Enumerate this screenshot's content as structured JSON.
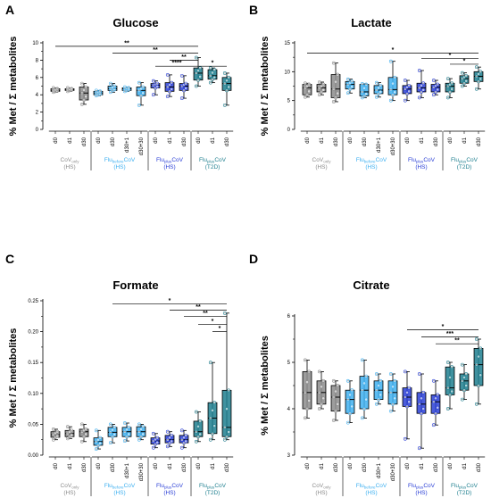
{
  "panels": [
    {
      "letter": "A"
    },
    {
      "letter": "B"
    },
    {
      "letter": "C"
    },
    {
      "letter": "D"
    }
  ],
  "colors": {
    "CoV_only": "#8c8c8c",
    "Flu_before_CoV": "#3fb0f0",
    "Flu_plus_CoV_HS": "#2a3fd6",
    "Flu_plus_CoV_T2D": "#1f7f8f"
  },
  "chart_data": [
    {
      "type": "box",
      "title": "Glucose",
      "ylabel": "% Met / Σ metabolites",
      "ylim": [
        0,
        10
      ],
      "yticks": [
        "0",
        "2",
        "4",
        "6",
        "8",
        "10"
      ],
      "groups": [
        {
          "base": "CoV",
          "sub": "only",
          "tail": "",
          "cohort": "(HS)",
          "categories": [
            "d0",
            "d1",
            "d30"
          ]
        },
        {
          "base": "Flu",
          "sub": "before",
          "tail": "CoV",
          "cohort": "(HS)",
          "categories": [
            "d0",
            "d30",
            "d30+1",
            "d30+30"
          ]
        },
        {
          "base": "Flu",
          "sub": "plus",
          "tail": "CoV",
          "cohort": "(HS)",
          "categories": [
            "d0",
            "d1",
            "d30"
          ]
        },
        {
          "base": "Flu",
          "sub": "plus",
          "tail": "CoV",
          "cohort": "(T2D)",
          "categories": [
            "d0",
            "d1",
            "d30"
          ]
        }
      ],
      "boxes": [
        {
          "min": 4.3,
          "q1": 4.4,
          "median": 4.5,
          "q3": 4.7,
          "max": 4.8
        },
        {
          "min": 4.4,
          "q1": 4.5,
          "median": 4.6,
          "q3": 4.7,
          "max": 4.8
        },
        {
          "min": 2.9,
          "q1": 3.4,
          "median": 4.2,
          "q3": 4.9,
          "max": 5.3
        },
        {
          "min": 3.9,
          "q1": 4.0,
          "median": 4.2,
          "q3": 4.4,
          "max": 4.5
        },
        {
          "min": 4.3,
          "q1": 4.5,
          "median": 4.7,
          "q3": 5.0,
          "max": 5.3
        },
        {
          "min": 4.4,
          "q1": 4.5,
          "median": 4.7,
          "q3": 4.8,
          "max": 4.9
        },
        {
          "min": 2.8,
          "q1": 3.9,
          "median": 4.5,
          "q3": 4.9,
          "max": 5.4
        },
        {
          "min": 4.0,
          "q1": 4.8,
          "median": 5.1,
          "q3": 5.3,
          "max": 5.6
        },
        {
          "min": 3.8,
          "q1": 4.4,
          "median": 4.9,
          "q3": 5.4,
          "max": 6.3
        },
        {
          "min": 3.6,
          "q1": 4.5,
          "median": 5.0,
          "q3": 5.3,
          "max": 6.2
        },
        {
          "min": 5.0,
          "q1": 5.7,
          "median": 6.5,
          "q3": 7.1,
          "max": 8.3
        },
        {
          "min": 5.4,
          "q1": 5.8,
          "median": 6.2,
          "q3": 6.9,
          "max": 7.1
        },
        {
          "min": 2.8,
          "q1": 4.5,
          "median": 5.3,
          "q3": 6.0,
          "max": 6.5
        }
      ],
      "significance": [
        {
          "label": "**",
          "from": 0,
          "to": 10,
          "y": 9.6
        },
        {
          "label": "**",
          "from": 4,
          "to": 10,
          "y": 8.8
        },
        {
          "label": "**",
          "from": 8,
          "to": 10,
          "y": 8.0
        },
        {
          "label": "****",
          "from": 7,
          "to": 10,
          "y": 7.3
        },
        {
          "label": "*",
          "from": 10,
          "to": 12,
          "y": 7.3
        }
      ]
    },
    {
      "type": "box",
      "title": "Lactate",
      "ylabel": "% Met / Σ metabolites",
      "ylim": [
        0,
        15
      ],
      "yticks": [
        "0",
        "5",
        "10",
        "15"
      ],
      "groups": [
        {
          "base": "CoV",
          "sub": "only",
          "tail": "",
          "cohort": "(HS)",
          "categories": [
            "d0",
            "d1",
            "d30"
          ]
        },
        {
          "base": "Flu",
          "sub": "before",
          "tail": "CoV",
          "cohort": "(HS)",
          "categories": [
            "d0",
            "d30",
            "d30+1",
            "d30+30"
          ]
        },
        {
          "base": "Flu",
          "sub": "plus",
          "tail": "CoV",
          "cohort": "(HS)",
          "categories": [
            "d0",
            "d1",
            "d30"
          ]
        },
        {
          "base": "Flu",
          "sub": "plus",
          "tail": "CoV",
          "cohort": "(T2D)",
          "categories": [
            "d0",
            "d1",
            "d30"
          ]
        }
      ],
      "boxes": [
        {
          "min": 5.6,
          "q1": 6.0,
          "median": 7.2,
          "q3": 7.8,
          "max": 8.0
        },
        {
          "min": 6.0,
          "q1": 6.5,
          "median": 7.2,
          "q3": 7.8,
          "max": 8.2
        },
        {
          "min": 4.8,
          "q1": 5.5,
          "median": 7.0,
          "q3": 9.5,
          "max": 11.5
        },
        {
          "min": 6.3,
          "q1": 7.0,
          "median": 7.8,
          "q3": 8.3,
          "max": 8.7
        },
        {
          "min": 5.5,
          "q1": 5.8,
          "median": 6.5,
          "q3": 7.8,
          "max": 7.9
        },
        {
          "min": 5.6,
          "q1": 6.2,
          "median": 6.8,
          "q3": 7.6,
          "max": 8.1
        },
        {
          "min": 5.0,
          "q1": 6.0,
          "median": 6.9,
          "q3": 9.0,
          "max": 11.8
        },
        {
          "min": 5.0,
          "q1": 6.2,
          "median": 7.0,
          "q3": 7.6,
          "max": 8.5
        },
        {
          "min": 5.5,
          "q1": 6.5,
          "median": 7.2,
          "q3": 8.0,
          "max": 10.2
        },
        {
          "min": 6.0,
          "q1": 6.5,
          "median": 7.3,
          "q3": 7.8,
          "max": 8.5
        },
        {
          "min": 5.5,
          "q1": 6.5,
          "median": 7.5,
          "q3": 8.0,
          "max": 8.8
        },
        {
          "min": 7.5,
          "q1": 8.0,
          "median": 8.8,
          "q3": 9.3,
          "max": 9.8
        },
        {
          "min": 7.0,
          "q1": 8.3,
          "median": 9.2,
          "q3": 10.0,
          "max": 10.8
        }
      ],
      "significance": [
        {
          "label": "*",
          "from": 0,
          "to": 12,
          "y": 13.2
        },
        {
          "label": "*",
          "from": 8,
          "to": 12,
          "y": 12.3
        },
        {
          "label": "*",
          "from": 10,
          "to": 12,
          "y": 11.3
        }
      ]
    },
    {
      "type": "box",
      "title": "Formate",
      "ylabel": "% Met / Σ metabolites",
      "ylim": [
        0,
        0.25
      ],
      "yticks": [
        "0.00",
        "0.05",
        "0.10",
        "0.15",
        "0.20",
        "0.25"
      ],
      "groups": [
        {
          "base": "CoV",
          "sub": "only",
          "tail": "",
          "cohort": "(HS)",
          "categories": [
            "d0",
            "d1",
            "d30"
          ]
        },
        {
          "base": "Flu",
          "sub": "before",
          "tail": "CoV",
          "cohort": "(HS)",
          "categories": [
            "d0",
            "d30",
            "d30+1",
            "d30+30"
          ]
        },
        {
          "base": "Flu",
          "sub": "plus",
          "tail": "CoV",
          "cohort": "(HS)",
          "categories": [
            "d0",
            "d1",
            "d30"
          ]
        },
        {
          "base": "Flu",
          "sub": "plus",
          "tail": "CoV",
          "cohort": "(T2D)",
          "categories": [
            "d0",
            "d1",
            "d30"
          ]
        }
      ],
      "boxes": [
        {
          "min": 0.025,
          "q1": 0.029,
          "median": 0.033,
          "q3": 0.038,
          "max": 0.042
        },
        {
          "min": 0.027,
          "q1": 0.03,
          "median": 0.035,
          "q3": 0.04,
          "max": 0.046
        },
        {
          "min": 0.022,
          "q1": 0.03,
          "median": 0.038,
          "q3": 0.042,
          "max": 0.05
        },
        {
          "min": 0.01,
          "q1": 0.016,
          "median": 0.022,
          "q3": 0.028,
          "max": 0.04
        },
        {
          "min": 0.02,
          "q1": 0.03,
          "median": 0.037,
          "q3": 0.045,
          "max": 0.05
        },
        {
          "min": 0.023,
          "q1": 0.03,
          "median": 0.038,
          "q3": 0.045,
          "max": 0.052
        },
        {
          "min": 0.025,
          "q1": 0.03,
          "median": 0.038,
          "q3": 0.046,
          "max": 0.05
        },
        {
          "min": 0.012,
          "q1": 0.018,
          "median": 0.023,
          "q3": 0.028,
          "max": 0.035
        },
        {
          "min": 0.014,
          "q1": 0.02,
          "median": 0.025,
          "q3": 0.032,
          "max": 0.038
        },
        {
          "min": 0.012,
          "q1": 0.02,
          "median": 0.025,
          "q3": 0.032,
          "max": 0.04
        },
        {
          "min": 0.022,
          "q1": 0.03,
          "median": 0.038,
          "q3": 0.055,
          "max": 0.07
        },
        {
          "min": 0.025,
          "q1": 0.035,
          "median": 0.06,
          "q3": 0.085,
          "max": 0.15
        },
        {
          "min": 0.025,
          "q1": 0.03,
          "median": 0.045,
          "q3": 0.105,
          "max": 0.23
        }
      ],
      "significance": [
        {
          "label": "*",
          "from": 4,
          "to": 12,
          "y": 0.245
        },
        {
          "label": "**",
          "from": 8,
          "to": 12,
          "y": 0.235
        },
        {
          "label": "**",
          "from": 9,
          "to": 12,
          "y": 0.225
        },
        {
          "label": "*",
          "from": 10,
          "to": 12,
          "y": 0.212
        },
        {
          "label": "*",
          "from": 11,
          "to": 12,
          "y": 0.2
        }
      ]
    },
    {
      "type": "box",
      "title": "Citrate",
      "ylabel": "% Met / Σ metabolites",
      "ylim": [
        3,
        6
      ],
      "yticks": [
        "3",
        "4",
        "5",
        "6"
      ],
      "groups": [
        {
          "base": "CoV",
          "sub": "only",
          "tail": "",
          "cohort": "(HS)",
          "categories": [
            "d0",
            "d1",
            "d30"
          ]
        },
        {
          "base": "Flu",
          "sub": "before",
          "tail": "CoV",
          "cohort": "(HS)",
          "categories": [
            "d0",
            "d30",
            "d30+1",
            "d30+30"
          ]
        },
        {
          "base": "Flu",
          "sub": "plus",
          "tail": "CoV",
          "cohort": "(HS)",
          "categories": [
            "d0",
            "d1",
            "d30"
          ]
        },
        {
          "base": "Flu",
          "sub": "plus",
          "tail": "CoV",
          "cohort": "(T2D)",
          "categories": [
            "d0",
            "d1",
            "d30"
          ]
        }
      ],
      "boxes": [
        {
          "min": 3.8,
          "q1": 4.0,
          "median": 4.35,
          "q3": 4.8,
          "max": 5.05
        },
        {
          "min": 4.0,
          "q1": 4.1,
          "median": 4.35,
          "q3": 4.6,
          "max": 4.8
        },
        {
          "min": 3.75,
          "q1": 3.95,
          "median": 4.25,
          "q3": 4.5,
          "max": 4.6
        },
        {
          "min": 3.7,
          "q1": 3.9,
          "median": 4.2,
          "q3": 4.4,
          "max": 4.6
        },
        {
          "min": 3.8,
          "q1": 4.0,
          "median": 4.4,
          "q3": 4.7,
          "max": 5.05
        },
        {
          "min": 4.1,
          "q1": 4.2,
          "median": 4.4,
          "q3": 4.6,
          "max": 4.75
        },
        {
          "min": 3.95,
          "q1": 4.1,
          "median": 4.35,
          "q3": 4.6,
          "max": 4.75
        },
        {
          "min": 3.35,
          "q1": 4.05,
          "median": 4.25,
          "q3": 4.45,
          "max": 4.8
        },
        {
          "min": 3.15,
          "q1": 3.9,
          "median": 4.1,
          "q3": 4.35,
          "max": 4.75
        },
        {
          "min": 3.65,
          "q1": 3.9,
          "median": 4.15,
          "q3": 4.3,
          "max": 4.6
        },
        {
          "min": 4.0,
          "q1": 4.3,
          "median": 4.45,
          "q3": 4.9,
          "max": 5.0
        },
        {
          "min": 4.2,
          "q1": 4.4,
          "median": 4.6,
          "q3": 4.75,
          "max": 4.95
        },
        {
          "min": 4.1,
          "q1": 4.5,
          "median": 4.95,
          "q3": 5.3,
          "max": 5.5
        }
      ],
      "significance": [
        {
          "label": "*",
          "from": 7,
          "to": 12,
          "y": 5.7
        },
        {
          "label": "***",
          "from": 8,
          "to": 12,
          "y": 5.55
        },
        {
          "label": "**",
          "from": 9,
          "to": 12,
          "y": 5.4
        }
      ]
    }
  ]
}
